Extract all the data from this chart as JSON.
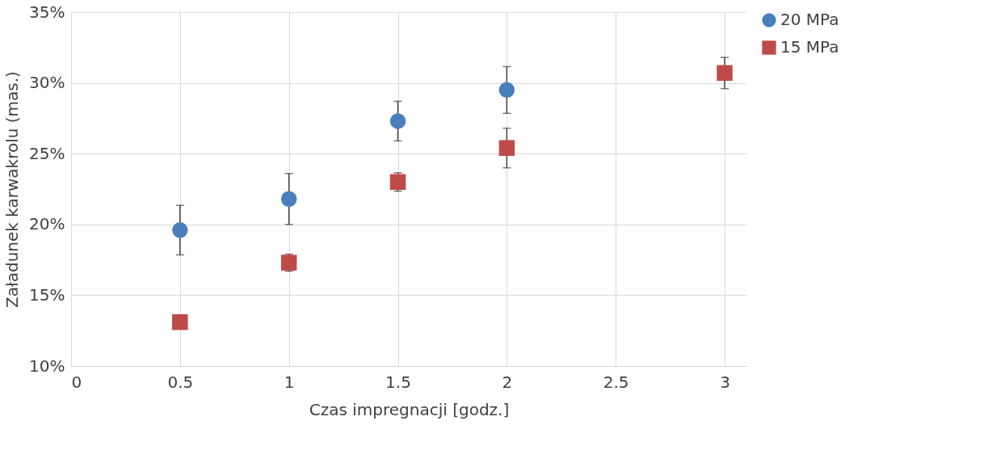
{
  "chart_data": {
    "type": "scatter",
    "xlabel": "Czas impregnacji [godz.]",
    "ylabel": "Załadunek karwakrolu (mas.)",
    "x": [
      0.5,
      1,
      1.5,
      2,
      3
    ],
    "series": [
      {
        "name": "20 MPa",
        "color": "#4a7ebb",
        "marker": "circle",
        "values": [
          19.6,
          21.8,
          27.3,
          29.5,
          null
        ],
        "errors": [
          1.75,
          1.8,
          1.4,
          1.65,
          null
        ]
      },
      {
        "name": "15 MPa",
        "color": "#be4b48",
        "marker": "square",
        "values": [
          13.1,
          17.3,
          23.0,
          25.4,
          30.7
        ],
        "errors": [
          null,
          0.6,
          0.65,
          1.4,
          1.1
        ]
      }
    ],
    "xlim": [
      0,
      3.1
    ],
    "xticks": [
      0,
      0.5,
      1,
      1.5,
      2,
      2.5,
      3
    ],
    "ylim": [
      10,
      35
    ],
    "yticks": [
      {
        "value": 10,
        "label": "10%"
      },
      {
        "value": 15,
        "label": "15%"
      },
      {
        "value": 20,
        "label": "20%"
      },
      {
        "value": 25,
        "label": "25%"
      },
      {
        "value": 30,
        "label": "30%"
      },
      {
        "value": 35,
        "label": "35%"
      }
    ],
    "grid": true,
    "legend": "right"
  }
}
